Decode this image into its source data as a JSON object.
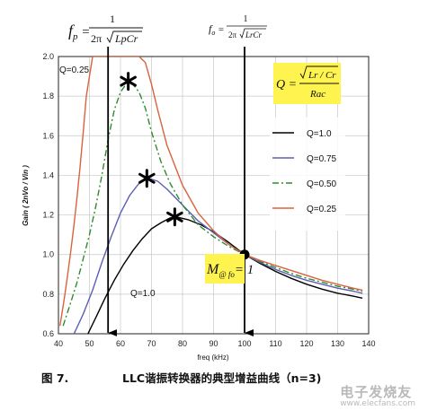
{
  "chart_data": {
    "type": "line",
    "title": "",
    "xlabel": "freq (kHz)",
    "ylabel": "Gain ( 2nVo / Vin )",
    "xlim": [
      40,
      140
    ],
    "ylim": [
      0.6,
      2.0
    ],
    "xticks": [
      40,
      50,
      60,
      70,
      80,
      90,
      100,
      110,
      120,
      130,
      140
    ],
    "yticks": [
      "0.6",
      "0.8",
      "1.0",
      "1.2",
      "1.4",
      "1.6",
      "1.8",
      "2.0"
    ],
    "grid": true,
    "legend_position": "right",
    "series": [
      {
        "name": "Q=1.0",
        "color": "#000000",
        "dash": "",
        "x": [
          49.5,
          52,
          55,
          58,
          61,
          64,
          67,
          70,
          73,
          76,
          78,
          82,
          86,
          90,
          95,
          100,
          105,
          110,
          115,
          120,
          125,
          130,
          135,
          138
        ],
        "y": [
          0.6,
          0.68,
          0.78,
          0.87,
          0.95,
          1.02,
          1.08,
          1.13,
          1.16,
          1.185,
          1.19,
          1.175,
          1.15,
          1.115,
          1.06,
          1.0,
          0.955,
          0.915,
          0.88,
          0.85,
          0.825,
          0.805,
          0.79,
          0.78
        ]
      },
      {
        "name": "Q=0.75",
        "color": "#5b5fb3",
        "dash": "",
        "x": [
          45,
          48,
          51,
          54,
          57,
          60,
          63,
          66,
          69,
          72,
          75,
          80,
          85,
          90,
          95,
          100,
          105,
          110,
          115,
          120,
          125,
          130,
          135,
          138
        ],
        "y": [
          0.6,
          0.7,
          0.82,
          0.96,
          1.09,
          1.21,
          1.3,
          1.36,
          1.385,
          1.37,
          1.33,
          1.25,
          1.17,
          1.11,
          1.05,
          1.0,
          0.96,
          0.925,
          0.895,
          0.87,
          0.85,
          0.83,
          0.815,
          0.805
        ]
      },
      {
        "name": "Q=0.50",
        "color": "#2e8b2e",
        "dash": "7,3,2,3",
        "x": [
          41.5,
          44,
          46,
          48,
          50,
          52,
          54,
          56,
          58,
          60,
          62,
          64,
          66,
          68,
          70,
          73,
          76,
          80,
          85,
          90,
          95,
          100,
          105,
          110,
          115,
          120,
          125,
          130,
          135,
          138
        ],
        "y": [
          0.64,
          0.76,
          0.86,
          0.98,
          1.1,
          1.24,
          1.4,
          1.58,
          1.73,
          1.82,
          1.865,
          1.86,
          1.82,
          1.74,
          1.62,
          1.47,
          1.36,
          1.25,
          1.15,
          1.09,
          1.04,
          1.0,
          0.965,
          0.935,
          0.905,
          0.88,
          0.86,
          0.84,
          0.825,
          0.815
        ]
      },
      {
        "name": "Q=0.25",
        "color": "#d9633c",
        "dash": "",
        "x": [
          40.5,
          42,
          43,
          44,
          45,
          46,
          47,
          48,
          49,
          51,
          53,
          55,
          57,
          59,
          60,
          63,
          66,
          68,
          70,
          72,
          75,
          80,
          85,
          90,
          95,
          100,
          105,
          110,
          115,
          120,
          125,
          130,
          135,
          138
        ],
        "y": [
          0.64,
          0.79,
          0.9,
          1.02,
          1.15,
          1.29,
          1.45,
          1.62,
          1.8,
          2.0,
          2.0,
          2.0,
          2.0,
          2.0,
          2.0,
          2.0,
          2.0,
          1.97,
          1.86,
          1.73,
          1.55,
          1.35,
          1.21,
          1.12,
          1.05,
          1.0,
          0.97,
          0.945,
          0.92,
          0.895,
          0.87,
          0.85,
          0.83,
          0.82
        ]
      }
    ],
    "peak_markers": [
      {
        "x": 62.5,
        "y": 1.875
      },
      {
        "x": 68.5,
        "y": 1.385
      },
      {
        "x": 77.5,
        "y": 1.19
      }
    ],
    "resonance_point": {
      "x": 100,
      "y": 1.0
    },
    "vertical_lines": [
      {
        "name": "fp",
        "x": 56
      },
      {
        "name": "fo",
        "x": 100
      }
    ],
    "annotations": {
      "q_top": "Q=0.25",
      "q_bottom": "Q=1.0"
    }
  },
  "equations": {
    "fp_lhs": "f",
    "fp_sub": "p",
    "fp_num": "1",
    "fp_den_prefix": "2π",
    "fp_den_rad": "LpCr",
    "fo_lhs": "f",
    "fo_sub": "o",
    "fo_num": "1",
    "fo_den_prefix": "2π",
    "fo_den_rad": "LrCr",
    "q_lhs": "Q =",
    "q_num": "Lr / Cr",
    "q_den": "Rac",
    "m_lhs": "M",
    "m_sub": "@ fo",
    "m_rhs": "= 1"
  },
  "colors": {
    "highlight": "#fff44f",
    "grid": "#c8c8c8"
  },
  "caption": {
    "figure": "图 7.",
    "text": "LLC谐振转换器的典型增益曲线（n=3)"
  },
  "watermark": {
    "main": "电子发烧友",
    "sub": "www.elecfans.com"
  }
}
